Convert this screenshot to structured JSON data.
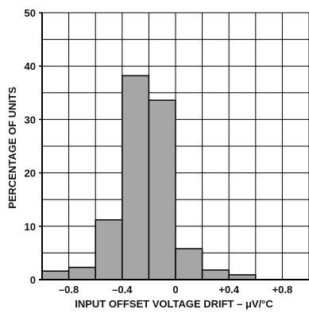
{
  "chart_data": {
    "type": "bar",
    "title": "",
    "xlabel": "INPUT OFFSET VOLTAGE DRIFT – μV/°C",
    "ylabel": "PERCENTAGE OF UNITS",
    "ylim": [
      0,
      50
    ],
    "yticks": [
      0,
      10,
      20,
      30,
      40,
      50
    ],
    "xlim": [
      -1.0,
      1.0
    ],
    "xticks": [
      {
        "value": -0.8,
        "label": "–0.8"
      },
      {
        "value": -0.4,
        "label": "–0.4"
      },
      {
        "value": 0,
        "label": "0"
      },
      {
        "value": 0.4,
        "label": "+0.4"
      },
      {
        "value": 0.8,
        "label": "+0.8"
      }
    ],
    "grid": true,
    "bins": [
      {
        "start": -1.0,
        "end": -0.8,
        "value": 1.6
      },
      {
        "start": -0.8,
        "end": -0.6,
        "value": 2.3
      },
      {
        "start": -0.6,
        "end": -0.4,
        "value": 11.2
      },
      {
        "start": -0.4,
        "end": -0.2,
        "value": 38.2
      },
      {
        "start": -0.2,
        "end": 0.0,
        "value": 33.6
      },
      {
        "start": 0.0,
        "end": 0.2,
        "value": 5.8
      },
      {
        "start": 0.2,
        "end": 0.4,
        "value": 1.8
      },
      {
        "start": 0.4,
        "end": 0.6,
        "value": 0.9
      },
      {
        "start": 0.6,
        "end": 0.8,
        "value": 0
      },
      {
        "start": 0.8,
        "end": 1.0,
        "value": 0
      }
    ],
    "bar_color": "#a6a6a6",
    "bar_edge_color": "#000000"
  }
}
